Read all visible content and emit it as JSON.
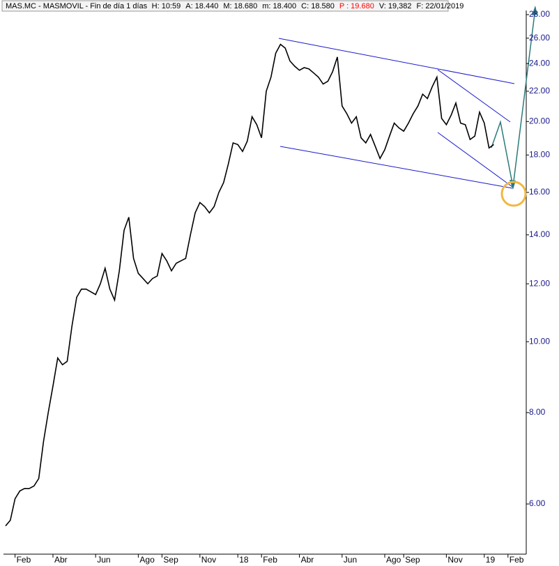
{
  "chart_data": {
    "type": "line",
    "title": "MAS.MC - MASMOVIL - Fin de día 1 días",
    "info": [
      {
        "text": "H: 10:59",
        "color": "#000000"
      },
      {
        "text": "A: 18.440",
        "color": "#000000"
      },
      {
        "text": "M: 18.680",
        "color": "#000000"
      },
      {
        "text": "m: 18.400",
        "color": "#000000"
      },
      {
        "text": "C: 18.580",
        "color": "#000000"
      },
      {
        "text": "P : 19.680",
        "color": "#ff0000"
      },
      {
        "text": "V: 19,382",
        "color": "#000000"
      },
      {
        "text": "F: 22/01/2019",
        "color": "#000000"
      }
    ],
    "categories": [
      null,
      null,
      "Feb",
      null,
      null,
      null,
      null,
      null,
      null,
      null,
      "Abr",
      null,
      null,
      null,
      null,
      null,
      null,
      null,
      null,
      "Jun",
      null,
      null,
      null,
      null,
      null,
      null,
      null,
      null,
      "Ago",
      null,
      null,
      null,
      null,
      "Sep",
      null,
      null,
      null,
      null,
      null,
      null,
      null,
      "Nov",
      null,
      null,
      null,
      null,
      null,
      null,
      null,
      "18",
      null,
      null,
      null,
      null,
      "Feb",
      null,
      null,
      null,
      null,
      null,
      null,
      null,
      "Abr",
      null,
      null,
      null,
      null,
      null,
      null,
      null,
      null,
      "Jun",
      null,
      null,
      null,
      null,
      null,
      null,
      null,
      null,
      "Ago",
      null,
      null,
      null,
      "Sep",
      null,
      null,
      null,
      null,
      null,
      null,
      null,
      null,
      "Nov",
      null,
      null,
      null,
      null,
      null,
      null,
      null,
      "19",
      null,
      null,
      null,
      null,
      "Feb"
    ],
    "series": [
      {
        "name": "MAS.MC",
        "color": "#000000",
        "values": [
          5.6,
          5.7,
          6.1,
          6.25,
          6.3,
          6.3,
          6.35,
          6.5,
          7.3,
          8.0,
          8.7,
          9.5,
          9.3,
          9.4,
          10.5,
          11.5,
          11.8,
          11.8,
          11.7,
          11.6,
          12.0,
          12.6,
          11.8,
          11.4,
          12.5,
          14.2,
          14.8,
          13.0,
          12.4,
          12.2,
          12.0,
          12.2,
          12.3,
          13.2,
          12.9,
          12.5,
          12.8,
          12.9,
          13.0,
          14.0,
          15.0,
          15.5,
          15.3,
          15.0,
          15.3,
          16.0,
          16.5,
          17.5,
          18.7,
          18.6,
          18.2,
          18.8,
          20.3,
          19.8,
          19.0,
          22.0,
          23.0,
          24.8,
          25.5,
          25.2,
          24.2,
          23.8,
          23.5,
          23.7,
          23.6,
          23.3,
          23.0,
          22.5,
          22.7,
          23.4,
          24.5,
          21.0,
          20.5,
          19.9,
          20.3,
          19.0,
          18.7,
          19.2,
          18.5,
          17.8,
          18.3,
          19.1,
          19.9,
          19.6,
          19.4,
          19.9,
          20.5,
          21.0,
          21.8,
          21.5,
          22.3,
          23.0,
          20.2,
          19.8,
          20.4,
          21.2,
          19.9,
          19.8,
          18.9,
          19.1,
          20.6,
          19.9,
          18.4,
          18.6,
          null,
          null,
          null
        ]
      }
    ],
    "log_scale": true,
    "grid": false,
    "ylim": [
      5.18,
      28.37
    ],
    "yticks": [
      {
        "value": 6,
        "label": "6.00"
      },
      {
        "value": 8,
        "label": "8.00"
      },
      {
        "value": 10,
        "label": "10.00"
      },
      {
        "value": 12,
        "label": "12.00"
      },
      {
        "value": 14,
        "label": "14.00"
      },
      {
        "value": 16,
        "label": "16.00"
      },
      {
        "value": 18,
        "label": "18.00"
      },
      {
        "value": 20,
        "label": "20.00"
      },
      {
        "value": 22,
        "label": "22.00"
      },
      {
        "value": 24,
        "label": "24.00"
      },
      {
        "value": 26,
        "label": "26.00"
      },
      {
        "value": 28,
        "label": "28.00"
      }
    ]
  }
}
